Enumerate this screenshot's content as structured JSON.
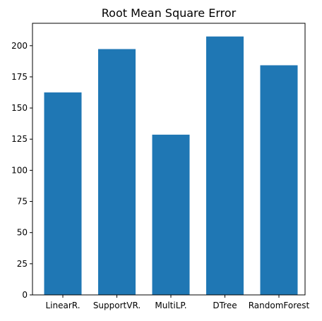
{
  "chart_data": {
    "type": "bar",
    "title": "Root Mean Square Error",
    "xlabel": "",
    "ylabel": "",
    "categories": [
      "LinearR.",
      "SupportVR.",
      "MultiLP.",
      "DTree",
      "RandomForest"
    ],
    "values": [
      162.5,
      197.3,
      128.6,
      207.4,
      184.3
    ],
    "ylim": [
      0,
      218
    ],
    "yticks": [
      0,
      25,
      50,
      75,
      100,
      125,
      150,
      175,
      200
    ],
    "grid": false,
    "legend": "none",
    "bar_color": "#1f77b4"
  }
}
